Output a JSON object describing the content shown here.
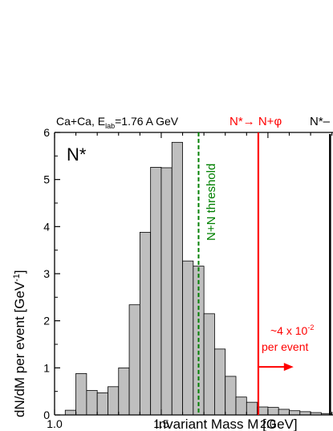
{
  "chart_data": {
    "type": "bar",
    "title": "Ca+Ca, E",
    "title_sub": "lab",
    "title_rest": "=1.76 A GeV",
    "panel_label": "N*",
    "xlabel": "Invariant Mass M [GeV]",
    "ylabel": "dN/dM per event [GeV",
    "ylabel_sup": "-1",
    "ylabel_end": "]",
    "xlim": [
      1.0,
      2.305
    ],
    "ylim": [
      0,
      6
    ],
    "x_ticks": [
      1.0,
      1.5,
      2.0
    ],
    "x_tick_labels": [
      "1.0",
      "1.5",
      "2.0"
    ],
    "y_ticks": [
      0,
      1,
      2,
      3,
      4,
      5,
      6
    ],
    "y_tick_labels": [
      "0",
      "1",
      "2",
      "3",
      "4",
      "5",
      "6"
    ],
    "bin_width": 0.05,
    "bin_starts": [
      1.05,
      1.1,
      1.15,
      1.2,
      1.25,
      1.3,
      1.35,
      1.4,
      1.45,
      1.5,
      1.55,
      1.6,
      1.65,
      1.7,
      1.75,
      1.8,
      1.85,
      1.9,
      1.95,
      2.0,
      2.05,
      2.1,
      2.15,
      2.2,
      2.25
    ],
    "values": [
      0.1,
      0.88,
      0.52,
      0.47,
      0.6,
      1.0,
      2.34,
      3.88,
      5.26,
      5.25,
      5.79,
      3.27,
      3.16,
      2.15,
      1.4,
      0.82,
      0.38,
      0.27,
      0.17,
      0.16,
      0.12,
      0.09,
      0.07,
      0.05,
      0.03
    ],
    "bar_color": "#bfbfbf",
    "threshold_line": {
      "x": 1.675,
      "label": "N+N threshold",
      "color": "#008000"
    },
    "phi_line": {
      "x": 1.955,
      "label_pre": "N*",
      "label_arrow": "→",
      "label_post": " N+",
      "label_phi": "φ",
      "color": "#ff0000"
    },
    "black_line": {
      "x": 2.295,
      "label": "N*–",
      "color": "#000000"
    },
    "annotation": {
      "text_pre": "~4 x 10",
      "text_sup": "-2",
      "text_line2": "per event",
      "arrow_from": 1.955,
      "arrow_to": 2.12,
      "arrow_y": 1.02,
      "color": "#ff0000"
    }
  }
}
